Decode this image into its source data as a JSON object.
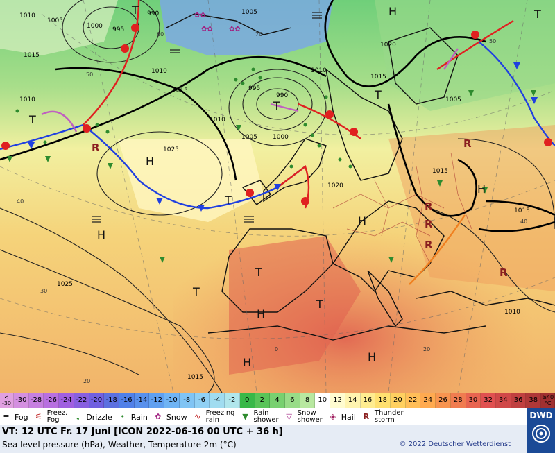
{
  "map": {
    "pressure_labels": [
      "1010",
      "1005",
      "1015",
      "990",
      "995",
      "1000",
      "1005",
      "1010",
      "1015",
      "1020",
      "1005",
      "1015",
      "1010",
      "1010",
      "995",
      "990",
      "1005",
      "1000",
      "1010",
      "1025",
      "1020",
      "1015",
      "1015",
      "1025",
      "1010",
      "1015"
    ],
    "temperature_labels": [
      "60",
      "50",
      "70",
      "40",
      "30",
      "20",
      "0",
      "50",
      "40",
      "20"
    ],
    "high_labels": [
      "H",
      "H",
      "H",
      "H",
      "H",
      "H",
      "H",
      "H"
    ],
    "low_labels": [
      "T",
      "T",
      "T",
      "T",
      "T",
      "T",
      "T",
      "T",
      "T"
    ]
  },
  "scale": {
    "cells": [
      "<\n-30",
      "-30",
      "-28",
      "-26",
      "-24",
      "-22",
      "-20",
      "-18",
      "-16",
      "-14",
      "-12",
      "-10",
      "-8",
      "-6",
      "-4",
      "-2",
      "0",
      "2",
      "4",
      "6",
      "8",
      "10",
      "12",
      "14",
      "16",
      "18",
      "20",
      "22",
      "24",
      "26",
      "28",
      "30",
      "32",
      "34",
      "36",
      "38",
      "≥40\n°C"
    ],
    "colors": [
      "#e0a0e0",
      "#d490e0",
      "#c680e0",
      "#b870e0",
      "#a060e0",
      "#8860e0",
      "#7060e0",
      "#5c70e0",
      "#5080e8",
      "#5890ec",
      "#60a0f0",
      "#70b4f4",
      "#80c4f4",
      "#90d0f4",
      "#a0dcf0",
      "#b0e6ec",
      "#38b848",
      "#58c458",
      "#78d070",
      "#98dc88",
      "#b8e8a0",
      "#ffffff",
      "#fffcd0",
      "#fff4b0",
      "#ffec90",
      "#ffe070",
      "#ffd060",
      "#ffbe58",
      "#ffaa50",
      "#f89450",
      "#f07c50",
      "#e86450",
      "#e05050",
      "#d04848",
      "#c04040",
      "#b03838",
      "#a03030"
    ]
  },
  "legend": {
    "fog": "Fog",
    "freez_fog": "Freez.\nFog",
    "drizzle": "Drizzle",
    "rain": "Rain",
    "snow": "Snow",
    "freezing_rain": "Freezing\nrain",
    "rain_shower": "Rain\nshower",
    "snow_shower": "Snow\nshower",
    "hail": "Hail",
    "thunderstorm": "Thunder\nstorm"
  },
  "info": {
    "vt": "VT: 12 UTC Fr.  17 Juni [ICON 2022-06-16  00 UTC + 36 h]",
    "subtitle": "Sea level pressure (hPa), Weather, Temperature 2m (°C)",
    "copyright": "© 2022 Deutscher Wetterdienst",
    "logo_text": "DWD"
  }
}
